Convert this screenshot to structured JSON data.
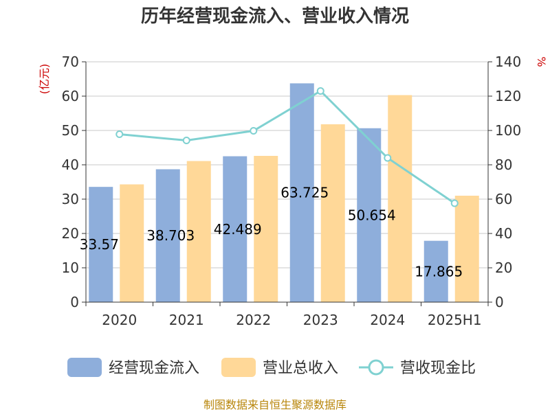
{
  "chart_data": {
    "type": "bar",
    "title": "历年经营现金流入、营业收入情况",
    "categories": [
      "2020",
      "2021",
      "2022",
      "2023",
      "2024",
      "2025H1"
    ],
    "series": [
      {
        "name": "经营现金流入",
        "kind": "bar",
        "axis": "left",
        "color": "#8eaedb",
        "values": [
          33.57,
          38.703,
          42.489,
          63.725,
          50.654,
          17.865
        ],
        "labels": [
          "33.57",
          "38.703",
          "42.489",
          "63.725",
          "50.654",
          "17.865"
        ]
      },
      {
        "name": "营业总收入",
        "kind": "bar",
        "axis": "left",
        "color": "#ffd898",
        "values": [
          34.3,
          41.1,
          42.6,
          51.8,
          60.3,
          31.0
        ]
      },
      {
        "name": "营收现金比",
        "kind": "line",
        "axis": "right",
        "color": "#7fd1d1",
        "values": [
          97.8,
          94.2,
          99.8,
          123.0,
          84.0,
          57.6
        ]
      }
    ],
    "ylabel_left": "(亿元)",
    "ylabel_right": "%",
    "ylim_left": [
      0,
      70
    ],
    "ylim_right": [
      0,
      140
    ],
    "yticks_left": [
      "0",
      "10",
      "20",
      "30",
      "40",
      "50",
      "60",
      "70"
    ],
    "yticks_right": [
      "0",
      "20",
      "40",
      "60",
      "80",
      "100",
      "120",
      "140"
    ],
    "grid": true,
    "legend_position": "bottom"
  },
  "source_text": "制图数据来自恒生聚源数据库"
}
